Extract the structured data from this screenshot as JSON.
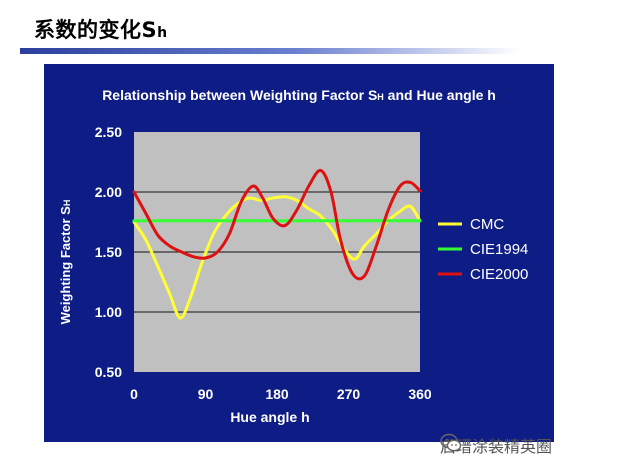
{
  "slide": {
    "title_main": "系数的变化S",
    "title_sub": "h"
  },
  "watermark": {
    "text": "启瑨涂装精英圈",
    "icon": "wechat-icon"
  },
  "colors": {
    "panel": "#0e1c85",
    "plot": "#c0c0c0",
    "cmc": "#ffff33",
    "cie1994": "#33ff33",
    "cie2000": "#dd1111"
  },
  "chart_data": {
    "type": "line",
    "title": "Relationship between Weighting Factor S",
    "title_sub": "H",
    "title_tail": " and Hue angle h",
    "xlabel": "Hue angle h",
    "ylabel": "Weighting Factor S",
    "ylabel_sub": "H",
    "xlim": [
      0,
      360
    ],
    "ylim": [
      0.5,
      2.5
    ],
    "x_ticks": [
      "0",
      "90",
      "180",
      "270",
      "360"
    ],
    "y_ticks": [
      "2.50",
      "2.00",
      "1.50",
      "1.00",
      "0.50"
    ],
    "grid": true,
    "legend_position": "right",
    "series": [
      {
        "name": "CMC",
        "color": "#ffff33",
        "x": [
          0,
          15,
          30,
          45,
          58,
          70,
          85,
          100,
          115,
          130,
          145,
          160,
          175,
          190,
          205,
          220,
          235,
          250,
          265,
          278,
          290,
          305,
          320,
          335,
          348,
          360
        ],
        "y": [
          1.75,
          1.6,
          1.38,
          1.15,
          0.95,
          1.1,
          1.4,
          1.65,
          1.8,
          1.9,
          1.95,
          1.93,
          1.95,
          1.96,
          1.93,
          1.86,
          1.8,
          1.68,
          1.52,
          1.44,
          1.55,
          1.65,
          1.76,
          1.84,
          1.88,
          1.76
        ]
      },
      {
        "name": "CIE1994",
        "color": "#33ff33",
        "x": [
          0,
          360
        ],
        "y": [
          1.76,
          1.76
        ]
      },
      {
        "name": "CIE2000",
        "color": "#dd1111",
        "x": [
          0,
          15,
          30,
          45,
          60,
          75,
          90,
          105,
          120,
          135,
          150,
          162,
          175,
          190,
          205,
          220,
          235,
          248,
          260,
          275,
          290,
          305,
          320,
          335,
          348,
          360
        ],
        "y": [
          2.0,
          1.82,
          1.64,
          1.55,
          1.5,
          1.46,
          1.45,
          1.5,
          1.65,
          1.92,
          2.05,
          1.95,
          1.78,
          1.72,
          1.85,
          2.05,
          2.18,
          2.0,
          1.6,
          1.32,
          1.3,
          1.55,
          1.85,
          2.05,
          2.08,
          2.01
        ]
      }
    ]
  }
}
